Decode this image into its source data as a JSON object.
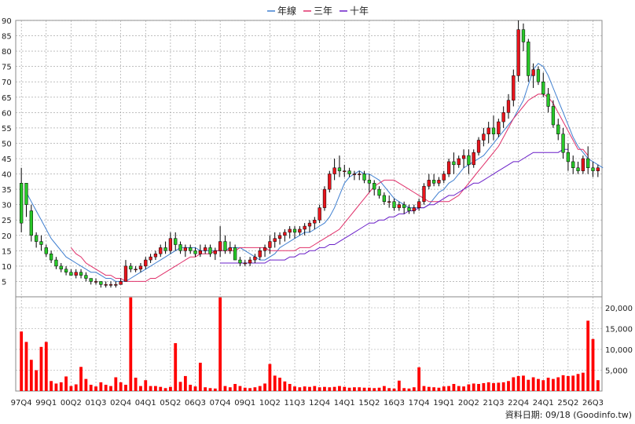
{
  "chart_data": {
    "type": "candlestick+bar",
    "legend": [
      {
        "name": "年線",
        "color": "#3f7fd0"
      },
      {
        "name": "三年",
        "color": "#e0306a"
      },
      {
        "name": "十年",
        "color": "#6a1fc8"
      }
    ],
    "price_axis": {
      "min": 0,
      "max": 90,
      "ticks": [
        5,
        10,
        15,
        20,
        25,
        30,
        35,
        40,
        45,
        50,
        55,
        60,
        65,
        70,
        75,
        80,
        85,
        90
      ]
    },
    "volume_axis": {
      "min": 0,
      "max": 20000,
      "ticks": [
        "5,000",
        "10,000",
        "15,000",
        "20,000"
      ],
      "tick_values": [
        5000,
        10000,
        15000,
        20000
      ]
    },
    "x_labels": [
      "97Q4",
      "99Q1",
      "00Q2",
      "01Q3",
      "02Q4",
      "04Q1",
      "05Q2",
      "06Q3",
      "07Q4",
      "09Q1",
      "10Q2",
      "11Q3",
      "12Q4",
      "14Q1",
      "15Q2",
      "16Q3",
      "17Q4",
      "19Q1",
      "20Q2",
      "21Q3",
      "22Q4",
      "24Q1",
      "25Q2",
      "26Q3"
    ],
    "x_label_index": [
      0,
      5,
      10,
      15,
      20,
      25,
      30,
      35,
      40,
      45,
      50,
      55,
      60,
      65,
      70,
      75,
      80,
      85,
      90,
      95,
      100,
      105,
      110,
      115
    ],
    "candles": [
      [
        37,
        42,
        21,
        24
      ],
      [
        37,
        37,
        26,
        30
      ],
      [
        28,
        30,
        18,
        20
      ],
      [
        20,
        21,
        16,
        18
      ],
      [
        18,
        20,
        15,
        17
      ],
      [
        16,
        17,
        13,
        14
      ],
      [
        14,
        15,
        11,
        12
      ],
      [
        12,
        13,
        9,
        10
      ],
      [
        10,
        11,
        8,
        9
      ],
      [
        9,
        10,
        7,
        8
      ],
      [
        8,
        9,
        7,
        7
      ],
      [
        7,
        9,
        6,
        8
      ],
      [
        8,
        9,
        6,
        7
      ],
      [
        7,
        8,
        5,
        6
      ],
      [
        6,
        6,
        4,
        5
      ],
      [
        5,
        6,
        4,
        5
      ],
      [
        5,
        5,
        3,
        4
      ],
      [
        4,
        5,
        3,
        4
      ],
      [
        4,
        5,
        3,
        4
      ],
      [
        4,
        5,
        3,
        4
      ],
      [
        4,
        6,
        4,
        5
      ],
      [
        5,
        12,
        5,
        10
      ],
      [
        10,
        11,
        8,
        9
      ],
      [
        9,
        10,
        8,
        9
      ],
      [
        9,
        11,
        8,
        10
      ],
      [
        10,
        13,
        9,
        12
      ],
      [
        12,
        14,
        11,
        13
      ],
      [
        13,
        15,
        12,
        14
      ],
      [
        14,
        17,
        13,
        16
      ],
      [
        16,
        18,
        14,
        15
      ],
      [
        15,
        21,
        14,
        19
      ],
      [
        19,
        21,
        15,
        17
      ],
      [
        17,
        18,
        14,
        15
      ],
      [
        15,
        17,
        13,
        16
      ],
      [
        16,
        17,
        14,
        15
      ],
      [
        15,
        16,
        13,
        14
      ],
      [
        14,
        17,
        13,
        15
      ],
      [
        15,
        17,
        14,
        16
      ],
      [
        16,
        17,
        13,
        14
      ],
      [
        14,
        16,
        12,
        15
      ],
      [
        15,
        23,
        13,
        18
      ],
      [
        18,
        20,
        14,
        15
      ],
      [
        15,
        18,
        14,
        16
      ],
      [
        16,
        17,
        12,
        12
      ],
      [
        12,
        13,
        10,
        11
      ],
      [
        11,
        12,
        10,
        11
      ],
      [
        11,
        13,
        10,
        12
      ],
      [
        12,
        14,
        11,
        13
      ],
      [
        13,
        16,
        12,
        15
      ],
      [
        15,
        17,
        13,
        16
      ],
      [
        16,
        20,
        14,
        18
      ],
      [
        18,
        21,
        16,
        19
      ],
      [
        19,
        21,
        17,
        20
      ],
      [
        20,
        22,
        18,
        21
      ],
      [
        21,
        23,
        19,
        22
      ],
      [
        22,
        23,
        19,
        21
      ],
      [
        21,
        23,
        20,
        22
      ],
      [
        22,
        24,
        20,
        23
      ],
      [
        23,
        25,
        21,
        24
      ],
      [
        24,
        26,
        22,
        25
      ],
      [
        25,
        30,
        24,
        29
      ],
      [
        29,
        36,
        28,
        35
      ],
      [
        35,
        41,
        34,
        40
      ],
      [
        40,
        45,
        38,
        42
      ],
      [
        42,
        46,
        39,
        41
      ],
      [
        41,
        43,
        39,
        41
      ],
      [
        41,
        42,
        39,
        40
      ],
      [
        40,
        41,
        38,
        40
      ],
      [
        40,
        41,
        38,
        40
      ],
      [
        40,
        41,
        37,
        38
      ],
      [
        38,
        40,
        34,
        37
      ],
      [
        37,
        38,
        33,
        35
      ],
      [
        35,
        36,
        32,
        33
      ],
      [
        33,
        34,
        30,
        31
      ],
      [
        31,
        33,
        29,
        31
      ],
      [
        31,
        32,
        28,
        29
      ],
      [
        29,
        31,
        28,
        30
      ],
      [
        30,
        31,
        27,
        29
      ],
      [
        29,
        30,
        27,
        28
      ],
      [
        28,
        30,
        27,
        29
      ],
      [
        29,
        32,
        28,
        31
      ],
      [
        31,
        37,
        30,
        36
      ],
      [
        36,
        40,
        35,
        38
      ],
      [
        38,
        40,
        36,
        37
      ],
      [
        37,
        39,
        36,
        38
      ],
      [
        38,
        41,
        37,
        40
      ],
      [
        40,
        45,
        39,
        44
      ],
      [
        44,
        47,
        40,
        43
      ],
      [
        43,
        46,
        42,
        45
      ],
      [
        45,
        48,
        42,
        46
      ],
      [
        46,
        48,
        40,
        43
      ],
      [
        43,
        48,
        42,
        47
      ],
      [
        47,
        52,
        46,
        51
      ],
      [
        51,
        55,
        49,
        53
      ],
      [
        53,
        57,
        50,
        55
      ],
      [
        55,
        59,
        51,
        53
      ],
      [
        53,
        58,
        52,
        57
      ],
      [
        57,
        62,
        55,
        60
      ],
      [
        60,
        66,
        58,
        64
      ],
      [
        64,
        74,
        62,
        72
      ],
      [
        72,
        90,
        70,
        87
      ],
      [
        87,
        89,
        80,
        83
      ],
      [
        83,
        84,
        70,
        72
      ],
      [
        72,
        76,
        68,
        74
      ],
      [
        74,
        75,
        69,
        70
      ],
      [
        70,
        73,
        65,
        66
      ],
      [
        66,
        68,
        60,
        62
      ],
      [
        62,
        64,
        55,
        56
      ],
      [
        56,
        58,
        51,
        53
      ],
      [
        53,
        55,
        45,
        47
      ],
      [
        47,
        50,
        41,
        44
      ],
      [
        44,
        46,
        40,
        42
      ],
      [
        42,
        44,
        40,
        41
      ],
      [
        41,
        46,
        40,
        45
      ],
      [
        45,
        49,
        40,
        42
      ],
      [
        42,
        44,
        39,
        41
      ],
      [
        41,
        43,
        39,
        42
      ]
    ],
    "volume": [
      14300,
      11800,
      7500,
      5000,
      10600,
      11800,
      2400,
      1800,
      2100,
      3500,
      1200,
      1600,
      5800,
      2900,
      1500,
      1100,
      2100,
      1500,
      1200,
      3300,
      2100,
      1500,
      22500,
      3200,
      1200,
      2600,
      1200,
      1200,
      1000,
      700,
      1000,
      11500,
      2200,
      3600,
      1500,
      1100,
      6800,
      900,
      700,
      600,
      22500,
      1200,
      900,
      1700,
      1200,
      800,
      700,
      900,
      1200,
      1800,
      6500,
      3700,
      3200,
      2300,
      1700,
      1100,
      900,
      1100,
      1000,
      1200,
      900,
      1000,
      900,
      1000,
      1200,
      1000,
      800,
      900,
      900,
      800,
      800,
      700,
      800,
      1200,
      700,
      600,
      2500,
      700,
      600,
      900,
      5700,
      1200,
      1000,
      900,
      800,
      1100,
      1200,
      1700,
      1200,
      1100,
      1600,
      1800,
      1700,
      1900,
      2100,
      1900,
      2000,
      2100,
      2400,
      3300,
      3600,
      3700,
      2700,
      3300,
      2900,
      2600,
      3200,
      2900,
      3300,
      3800,
      3600,
      3700,
      4100,
      4400,
      16900,
      12500,
      2600
    ],
    "series": [
      {
        "name": "年線",
        "color": "#3f7fd0",
        "start": 1,
        "values": [
          34,
          31,
          28,
          25,
          22,
          19,
          17,
          15,
          13,
          12,
          11,
          10,
          9,
          8,
          8,
          7,
          6,
          6,
          5,
          5,
          5,
          6,
          7,
          8,
          9,
          10,
          11,
          12,
          13,
          14,
          15,
          16,
          16,
          16,
          16,
          15,
          15,
          15,
          15,
          15,
          15,
          16,
          16,
          16,
          15,
          14,
          13,
          12,
          12,
          13,
          14,
          16,
          17,
          18,
          19,
          20,
          21,
          21,
          22,
          23,
          24,
          26,
          29,
          33,
          37,
          39,
          40,
          41,
          40,
          40,
          39,
          38,
          36,
          34,
          32,
          31,
          30,
          29,
          29,
          29,
          29,
          30,
          32,
          34,
          35,
          37,
          38,
          40,
          42,
          43,
          44,
          45,
          46,
          48,
          50,
          52,
          54,
          56,
          58,
          61,
          64,
          69,
          74,
          76,
          75,
          72,
          68,
          64,
          60,
          56,
          52,
          49,
          47,
          45,
          44,
          43,
          42
        ]
      },
      {
        "name": "三年",
        "color": "#e0306a",
        "start": 10,
        "values": [
          16,
          14,
          13,
          11,
          10,
          9,
          8,
          7,
          7,
          6,
          6,
          5,
          5,
          5,
          5,
          5,
          6,
          6,
          7,
          8,
          9,
          10,
          11,
          12,
          13,
          13,
          14,
          14,
          14,
          15,
          15,
          15,
          15,
          15,
          16,
          16,
          16,
          16,
          16,
          16,
          15,
          15,
          15,
          15,
          15,
          15,
          16,
          16,
          16,
          17,
          18,
          19,
          20,
          21,
          22,
          24,
          26,
          28,
          30,
          32,
          34,
          36,
          37,
          38,
          38,
          38,
          37,
          36,
          35,
          34,
          33,
          32,
          31,
          31,
          31,
          31,
          31,
          32,
          33,
          35,
          37,
          39,
          41,
          43,
          45,
          47,
          49,
          52,
          55,
          58,
          60,
          62,
          64,
          65,
          66,
          66,
          65,
          63,
          60,
          57,
          54,
          51,
          48,
          48,
          46
        ]
      },
      {
        "name": "十年",
        "color": "#6a1fc8",
        "start": 40,
        "values": [
          11,
          11,
          11,
          11,
          11,
          11,
          11,
          11,
          11,
          11,
          12,
          12,
          12,
          12,
          13,
          13,
          14,
          14,
          15,
          15,
          16,
          16,
          17,
          17,
          18,
          19,
          20,
          21,
          22,
          23,
          24,
          24,
          25,
          25,
          26,
          26,
          27,
          27,
          28,
          28,
          29,
          29,
          30,
          30,
          31,
          32,
          33,
          33,
          34,
          35,
          36,
          37,
          37,
          38,
          39,
          40,
          41,
          42,
          43,
          44,
          44,
          45,
          46,
          47,
          47,
          47,
          47,
          47,
          47,
          48,
          48
        ]
      }
    ]
  },
  "footer": {
    "text": "資料日期: 09/18  (Goodinfo.tw)"
  }
}
